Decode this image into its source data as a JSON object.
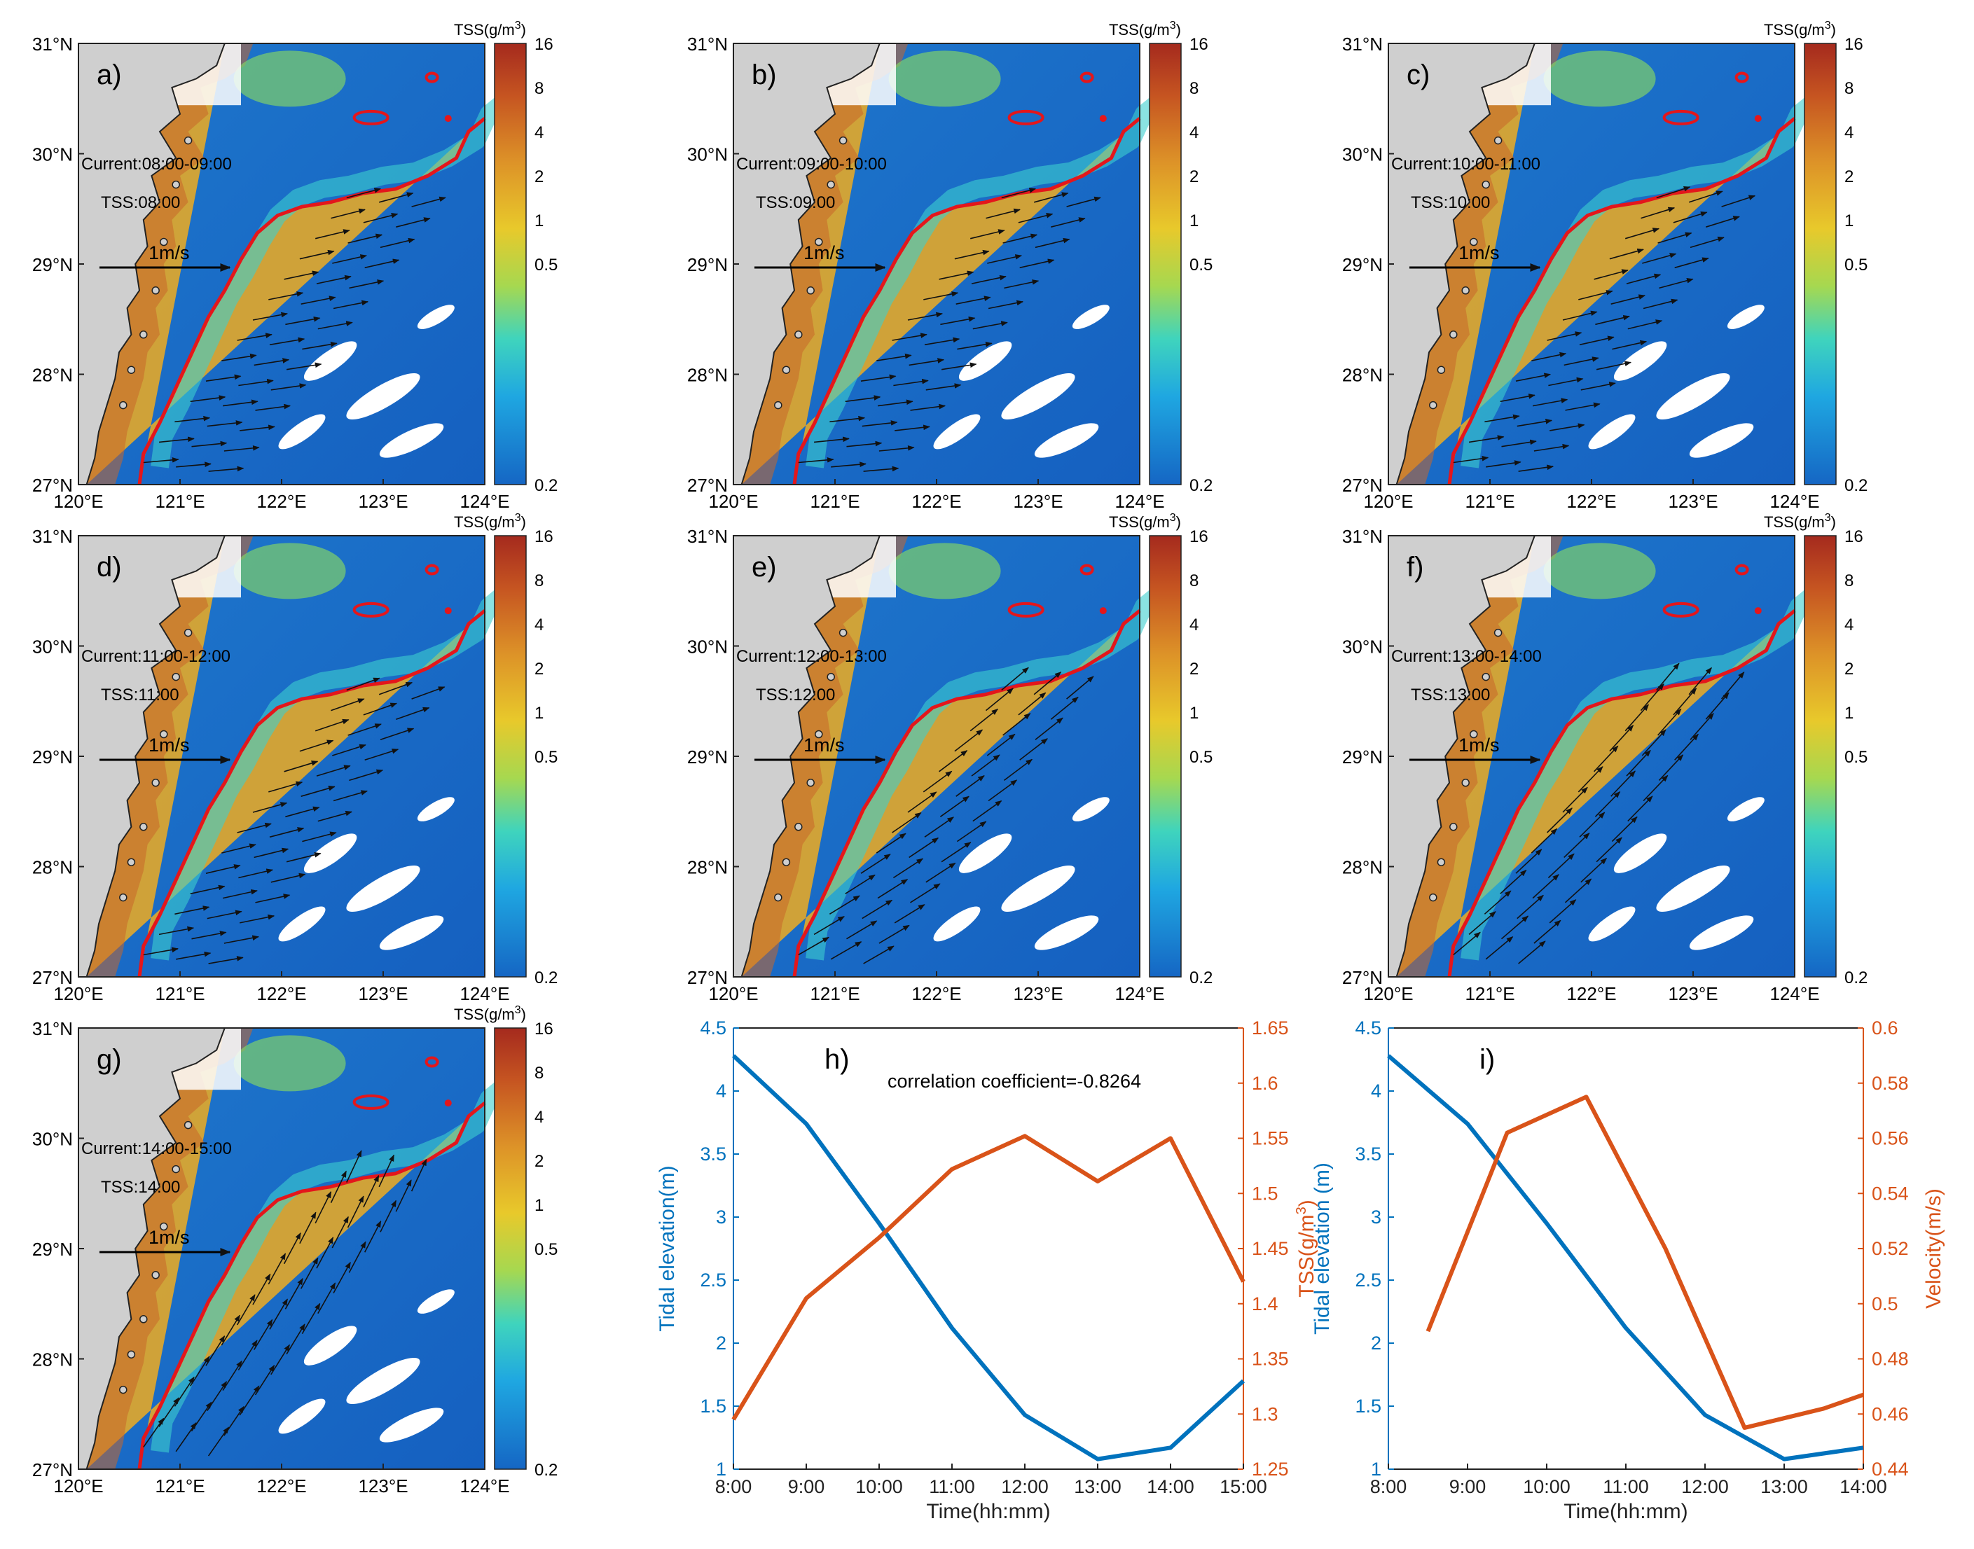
{
  "axes": {
    "lat_ticks": [
      "31°N",
      "30°N",
      "29°N",
      "28°N",
      "27°N"
    ],
    "lon_ticks": [
      "120°E",
      "121°E",
      "122°E",
      "123°E",
      "124°E"
    ]
  },
  "colorbar": {
    "title": "TSS(g/m",
    "title_sup": "3",
    "title_close": ")",
    "ticks": [
      "16",
      "8",
      "4",
      "2",
      "1",
      "0.5",
      "0.2"
    ],
    "colors": [
      "#a52a1e",
      "#cf6a20",
      "#e3a52a",
      "#ece12a",
      "#9bd85a",
      "#2ad6c4",
      "#1f9ee2",
      "#1566c4"
    ]
  },
  "colors": {
    "land": "#cfcfcf",
    "sea_clear": "#1f6fc8",
    "turbid": "#d9a531",
    "front": "#e4161b",
    "arrow": "#111111",
    "tide": "#0072bd",
    "tss_vel": "#d95319"
  },
  "vector_legend": "1m/s",
  "maps": [
    {
      "letter": "a)",
      "current": "Current:08:00-09:00",
      "tss": "TSS:08:00"
    },
    {
      "letter": "b)",
      "current": "Current:09:00-10:00",
      "tss": "TSS:09:00"
    },
    {
      "letter": "c)",
      "current": "Current:10:00-11:00",
      "tss": "TSS:10:00"
    },
    {
      "letter": "d)",
      "current": "Current:11:00-12:00",
      "tss": "TSS:11:00"
    },
    {
      "letter": "e)",
      "current": "Current:12:00-13:00",
      "tss": "TSS:12:00"
    },
    {
      "letter": "f)",
      "current": "Current:13:00-14:00",
      "tss": "TSS:13:00"
    },
    {
      "letter": "g)",
      "current": "Current:14:00-15:00",
      "tss": "TSS:14:00"
    }
  ],
  "chart_data": [
    {
      "type": "line",
      "panel": "h)",
      "annotation": "correlation coefficient=-0.8264",
      "xlabel": "Time(hh:mm)",
      "ylabel_left": "Tidal elevation(m)",
      "ylabel_right": "TSS(g/m",
      "ylabel_right_sup": "3",
      "ylabel_right_close": ")",
      "x_ticks": [
        "8:00",
        "9:00",
        "10:00",
        "11:00",
        "12:00",
        "13:00",
        "14:00",
        "15:00"
      ],
      "y_left_ticks": [
        "1",
        "1.5",
        "2",
        "2.5",
        "3",
        "3.5",
        "4",
        "4.5"
      ],
      "y_right_ticks": [
        "1.25",
        "1.3",
        "1.35",
        "1.4",
        "1.45",
        "1.5",
        "1.55",
        "1.6",
        "1.65"
      ],
      "xlim": [
        8,
        15
      ],
      "ylim_left": [
        1,
        4.5
      ],
      "ylim_right": [
        1.25,
        1.65
      ],
      "series": [
        {
          "axis": "left",
          "x": [
            8,
            9,
            10,
            11,
            12,
            13,
            14,
            15
          ],
          "values": [
            4.28,
            3.74,
            2.95,
            2.12,
            1.43,
            1.08,
            1.17,
            1.7
          ]
        },
        {
          "axis": "right",
          "x": [
            8,
            9,
            10,
            11,
            12,
            13,
            14,
            15
          ],
          "values": [
            1.295,
            1.405,
            1.46,
            1.522,
            1.552,
            1.511,
            1.55,
            1.42
          ]
        }
      ]
    },
    {
      "type": "line",
      "panel": "i)",
      "xlabel": "Time(hh:mm)",
      "ylabel_left": "Tidal elevation (m)",
      "ylabel_right": "Velocity(m/s)",
      "x_ticks": [
        "8:00",
        "9:00",
        "10:00",
        "11:00",
        "12:00",
        "13:00",
        "14:00"
      ],
      "y_left_ticks": [
        "1",
        "1.5",
        "2",
        "2.5",
        "3",
        "3.5",
        "4",
        "4.5"
      ],
      "y_right_ticks": [
        "0.44",
        "0.46",
        "0.48",
        "0.5",
        "0.52",
        "0.54",
        "0.56",
        "0.58",
        "0.6"
      ],
      "xlim": [
        8,
        14
      ],
      "ylim_left": [
        1,
        4.5
      ],
      "ylim_right": [
        0.44,
        0.6
      ],
      "series": [
        {
          "axis": "left",
          "x": [
            8,
            9,
            10,
            11,
            12,
            13,
            14
          ],
          "values": [
            4.28,
            3.74,
            2.95,
            2.12,
            1.43,
            1.08,
            1.17
          ]
        },
        {
          "axis": "right",
          "x": [
            8.5,
            9.5,
            10.5,
            11.5,
            12.5,
            13.5,
            14
          ],
          "values": [
            0.49,
            0.562,
            0.575,
            0.52,
            0.455,
            0.462,
            0.467
          ]
        }
      ]
    }
  ]
}
